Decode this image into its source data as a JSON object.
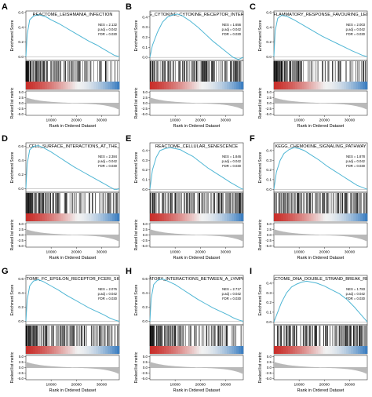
{
  "chart_data": [
    {
      "type": "line",
      "panel_letter": "A",
      "title": "REACTOME_LEISHMANIA_INFECTION",
      "stats": [
        "NES = 2.132",
        "p.adj = 0.042",
        "FDR = 0.030"
      ],
      "ylabel_top": "Enrichment Score",
      "ylabel_bottom": "Ranked list metric",
      "xlabel": "Rank in Ordered Dataset",
      "es_yticks": [
        "0.6",
        "0.4",
        "0.2",
        "0.0"
      ],
      "es_ylim": [
        -0.05,
        0.62
      ],
      "metric_yticks": [
        "5.0",
        "2.5",
        "0.0",
        "-2.5",
        "-5.0"
      ],
      "metric_ylim": [
        -5.5,
        5.5
      ],
      "xticks": [
        "10000",
        "20000",
        "30000"
      ],
      "xlim": [
        0,
        37000
      ],
      "es_curve": {
        "x": [
          0,
          500,
          1500,
          3000,
          5000,
          8000,
          10000,
          13000,
          16000,
          19000,
          22000,
          25000,
          28000,
          31000,
          33000,
          35000,
          36000,
          37000
        ],
        "y": [
          0.0,
          0.3,
          0.5,
          0.55,
          0.57,
          0.54,
          0.5,
          0.45,
          0.39,
          0.33,
          0.27,
          0.21,
          0.16,
          0.1,
          0.06,
          0.02,
          0.01,
          0.0
        ]
      },
      "hits_density": "front"
    },
    {
      "type": "line",
      "panel_letter": "B",
      "title": "KEGG_CYTOKINE_CYTOKINE_RECEPTOR_INTERACTI",
      "stats": [
        "NES = 1.656",
        "p.adj = 0.042",
        "FDR = 0.030"
      ],
      "ylabel_top": "Enrichment Score",
      "ylabel_bottom": "Ranked list metric",
      "xlabel": "Rank in Ordered Dataset",
      "es_yticks": [
        "0.4",
        "0.3",
        "0.2",
        "0.1",
        "0.0"
      ],
      "es_ylim": [
        -0.03,
        0.46
      ],
      "metric_yticks": [
        "5.0",
        "2.5",
        "0.0",
        "-2.5",
        "-5.0"
      ],
      "metric_ylim": [
        -5.5,
        5.5
      ],
      "xticks": [
        "10000",
        "20000",
        "30000"
      ],
      "xlim": [
        0,
        37000
      ],
      "es_curve": {
        "x": [
          0,
          1000,
          3000,
          5000,
          7000,
          9000,
          11000,
          13000,
          16000,
          19000,
          22000,
          25000,
          28000,
          31000,
          33000,
          35000,
          36000,
          37000
        ],
        "y": [
          0.0,
          0.12,
          0.25,
          0.35,
          0.4,
          0.42,
          0.43,
          0.41,
          0.36,
          0.3,
          0.23,
          0.16,
          0.1,
          0.04,
          0.0,
          -0.02,
          -0.01,
          0.0
        ]
      },
      "hits_density": "even"
    },
    {
      "type": "line",
      "panel_letter": "C",
      "title": "T_INFLAMMATORY_RESPONSE_FAVOURING_LEISHM",
      "stats": [
        "NES = 2.003",
        "p.adj = 0.042",
        "FDR = 0.030"
      ],
      "ylabel_top": "Enrichment Score",
      "ylabel_bottom": "Ranked list metric",
      "xlabel": "Rank in Ordered Dataset",
      "es_yticks": [
        "0.6",
        "0.4",
        "0.2",
        "0.0"
      ],
      "es_ylim": [
        -0.05,
        0.62
      ],
      "metric_yticks": [
        "5.0",
        "2.5",
        "0.0",
        "-2.5",
        "-5.0"
      ],
      "metric_ylim": [
        -5.5,
        5.5
      ],
      "xticks": [
        "10000",
        "20000",
        "30000"
      ],
      "xlim": [
        0,
        37000
      ],
      "es_curve": {
        "x": [
          0,
          500,
          1500,
          3000,
          5000,
          8000,
          10000,
          13000,
          16000,
          19000,
          22000,
          25000,
          28000,
          31000,
          33000,
          35000,
          36000,
          37000
        ],
        "y": [
          0.0,
          0.35,
          0.52,
          0.56,
          0.55,
          0.5,
          0.46,
          0.4,
          0.34,
          0.28,
          0.23,
          0.18,
          0.13,
          0.08,
          0.05,
          0.02,
          0.01,
          0.0
        ]
      },
      "hits_density": "front"
    },
    {
      "type": "line",
      "panel_letter": "D",
      "title": "CTOME_CELL_SURFACE_INTERACTIONS_AT_THE_VASCU",
      "stats": [
        "NES = 2.384",
        "p.adj = 0.042",
        "FDR = 0.030"
      ],
      "ylabel_top": "Enrichment Score",
      "ylabel_bottom": "Ranked list metric",
      "xlabel": "Rank in Ordered Dataset",
      "es_yticks": [
        "0.6",
        "0.4",
        "0.2",
        "0.0"
      ],
      "es_ylim": [
        -0.05,
        0.65
      ],
      "metric_yticks": [
        "5.0",
        "2.5",
        "0.0",
        "-2.5",
        "-5.0"
      ],
      "metric_ylim": [
        -5.5,
        5.5
      ],
      "xticks": [
        "10000",
        "20000",
        "30000"
      ],
      "xlim": [
        0,
        37000
      ],
      "es_curve": {
        "x": [
          0,
          500,
          1500,
          3000,
          5000,
          7000,
          10000,
          13000,
          16000,
          19000,
          22000,
          25000,
          28000,
          31000,
          33000,
          35000,
          36000,
          37000
        ],
        "y": [
          0.0,
          0.35,
          0.55,
          0.6,
          0.61,
          0.58,
          0.52,
          0.45,
          0.38,
          0.31,
          0.25,
          0.19,
          0.13,
          0.07,
          0.03,
          -0.01,
          -0.01,
          0.0
        ]
      },
      "hits_density": "front"
    },
    {
      "type": "line",
      "panel_letter": "E",
      "title": "REACTOME_CELLULAR_SENESCENCE",
      "stats": [
        "NES = 1.846",
        "p.adj = 0.042",
        "FDR = 0.030"
      ],
      "ylabel_top": "Enrichment Score",
      "ylabel_bottom": "Ranked list metric",
      "xlabel": "Rank in Ordered Dataset",
      "es_yticks": [
        "0.4",
        "0.3",
        "0.2",
        "0.1",
        "0.0"
      ],
      "es_ylim": [
        -0.03,
        0.48
      ],
      "metric_yticks": [
        "5.0",
        "2.5",
        "0.0",
        "-2.5",
        "-5.0"
      ],
      "metric_ylim": [
        -5.5,
        5.5
      ],
      "xticks": [
        "10000",
        "20000",
        "30000"
      ],
      "xlim": [
        0,
        37000
      ],
      "es_curve": {
        "x": [
          0,
          1000,
          2500,
          4000,
          6000,
          8000,
          10000,
          12000,
          14000,
          17000,
          20000,
          23000,
          26000,
          29000,
          32000,
          34000,
          36000,
          37000
        ],
        "y": [
          0.0,
          0.2,
          0.33,
          0.4,
          0.42,
          0.43,
          0.42,
          0.41,
          0.38,
          0.34,
          0.28,
          0.22,
          0.17,
          0.12,
          0.07,
          0.04,
          0.01,
          0.0
        ]
      },
      "hits_density": "even"
    },
    {
      "type": "line",
      "panel_letter": "F",
      "title": "KEGG_CHEMOKINE_SIGNALING_PATHWAY",
      "stats": [
        "NES = 1.878",
        "p.adj = 0.042",
        "FDR = 0.030"
      ],
      "ylabel_top": "Enrichment Score",
      "ylabel_bottom": "Ranked list metric",
      "xlabel": "Rank in Ordered Dataset",
      "es_yticks": [
        "0.4",
        "0.3",
        "0.2",
        "0.1",
        "0.0"
      ],
      "es_ylim": [
        -0.03,
        0.48
      ],
      "metric_yticks": [
        "5.0",
        "2.5",
        "0.0",
        "-2.5",
        "-5.0"
      ],
      "metric_ylim": [
        -5.5,
        5.5
      ],
      "xticks": [
        "10000",
        "20000",
        "30000"
      ],
      "xlim": [
        0,
        37000
      ],
      "es_curve": {
        "x": [
          0,
          1000,
          2500,
          4000,
          6000,
          8000,
          10000,
          12000,
          15000,
          18000,
          21000,
          24000,
          27000,
          30000,
          33000,
          35000,
          36000,
          37000
        ],
        "y": [
          0.0,
          0.18,
          0.3,
          0.37,
          0.41,
          0.43,
          0.42,
          0.4,
          0.35,
          0.3,
          0.24,
          0.19,
          0.14,
          0.09,
          0.04,
          0.02,
          0.01,
          0.0
        ]
      },
      "hits_density": "even"
    },
    {
      "type": "line",
      "panel_letter": "G",
      "title": "REACTOME_FC_EPSILON_RECEPTOR_FCERI_SIGNALI",
      "stats": [
        "NES = 2.076",
        "p.adj = 0.042",
        "FDR = 0.030"
      ],
      "ylabel_top": "Enrichment Score",
      "ylabel_bottom": "Ranked list metric",
      "xlabel": "Rank in Ordered Dataset",
      "es_yticks": [
        "0.6",
        "0.4",
        "0.2",
        "0.0"
      ],
      "es_ylim": [
        -0.05,
        0.65
      ],
      "metric_yticks": [
        "5.0",
        "2.5",
        "0.0",
        "-2.5",
        "-5.0"
      ],
      "metric_ylim": [
        -5.5,
        5.5
      ],
      "xticks": [
        "10000",
        "20000",
        "30000"
      ],
      "xlim": [
        0,
        37000
      ],
      "es_curve": {
        "x": [
          0,
          500,
          1500,
          3000,
          5000,
          7000,
          10000,
          13000,
          16000,
          19000,
          22000,
          25000,
          28000,
          31000,
          33000,
          35000,
          36000,
          37000
        ],
        "y": [
          0.0,
          0.3,
          0.5,
          0.57,
          0.59,
          0.56,
          0.5,
          0.44,
          0.37,
          0.31,
          0.25,
          0.19,
          0.14,
          0.09,
          0.05,
          0.02,
          0.01,
          0.0
        ]
      },
      "hits_density": "front"
    },
    {
      "type": "line",
      "panel_letter": "H",
      "title": "REGULATORY_INTERACTIONS_BETWEEN_A_LYMPHOID_AI",
      "stats": [
        "NES = 2.717",
        "p.adj = 0.042",
        "FDR = 0.030"
      ],
      "ylabel_top": "Enrichment Score",
      "ylabel_bottom": "Ranked list metric",
      "xlabel": "Rank in Ordered Dataset",
      "es_yticks": [
        "0.6",
        "0.4",
        "0.2",
        "0.0"
      ],
      "es_ylim": [
        -0.05,
        0.65
      ],
      "metric_yticks": [
        "5.0",
        "2.5",
        "0.0",
        "-2.5",
        "-5.0"
      ],
      "metric_ylim": [
        -5.5,
        5.5
      ],
      "xticks": [
        "10000",
        "20000",
        "30000"
      ],
      "xlim": [
        0,
        37000
      ],
      "es_curve": {
        "x": [
          0,
          500,
          1500,
          3000,
          5000,
          7000,
          10000,
          13000,
          16000,
          19000,
          22000,
          25000,
          28000,
          31000,
          33000,
          35000,
          36000,
          37000
        ],
        "y": [
          0.0,
          0.32,
          0.52,
          0.58,
          0.6,
          0.57,
          0.52,
          0.45,
          0.38,
          0.31,
          0.25,
          0.19,
          0.14,
          0.09,
          0.05,
          0.02,
          0.01,
          0.0
        ]
      },
      "hits_density": "front"
    },
    {
      "type": "line",
      "panel_letter": "I",
      "title": "REACTOME_DNA_DOUBLE_STRAND_BREAK_REPAI",
      "stats": [
        "NES = 1.783",
        "p.adj = 0.042",
        "FDR = 0.030"
      ],
      "ylabel_top": "Enrichment Score",
      "ylabel_bottom": "Ranked list metric",
      "xlabel": "Rank in Ordered Dataset",
      "es_yticks": [
        "0.4",
        "0.3",
        "0.2",
        "0.1",
        "0.0"
      ],
      "es_ylim": [
        -0.03,
        0.48
      ],
      "metric_yticks": [
        "5.0",
        "2.5",
        "0.0",
        "-2.5",
        "-5.0"
      ],
      "metric_ylim": [
        -5.5,
        5.5
      ],
      "xticks": [
        "10000",
        "20000",
        "30000"
      ],
      "xlim": [
        0,
        37000
      ],
      "es_curve": {
        "x": [
          0,
          1500,
          3000,
          5000,
          7000,
          9000,
          11000,
          13000,
          15000,
          17000,
          20000,
          23000,
          26000,
          29000,
          32000,
          34000,
          36000,
          37000
        ],
        "y": [
          0.0,
          0.1,
          0.2,
          0.3,
          0.36,
          0.39,
          0.41,
          0.42,
          0.41,
          0.4,
          0.37,
          0.33,
          0.29,
          0.23,
          0.15,
          0.09,
          0.03,
          0.0
        ]
      },
      "hits_density": "even"
    }
  ],
  "colors": {
    "curve": "#4fb6d4",
    "axis": "#333333",
    "metric_fill": "#b9b9b9",
    "ramp_red": "#c9302c",
    "ramp_white": "#f2f2f2",
    "ramp_blue": "#3d7fc1"
  }
}
